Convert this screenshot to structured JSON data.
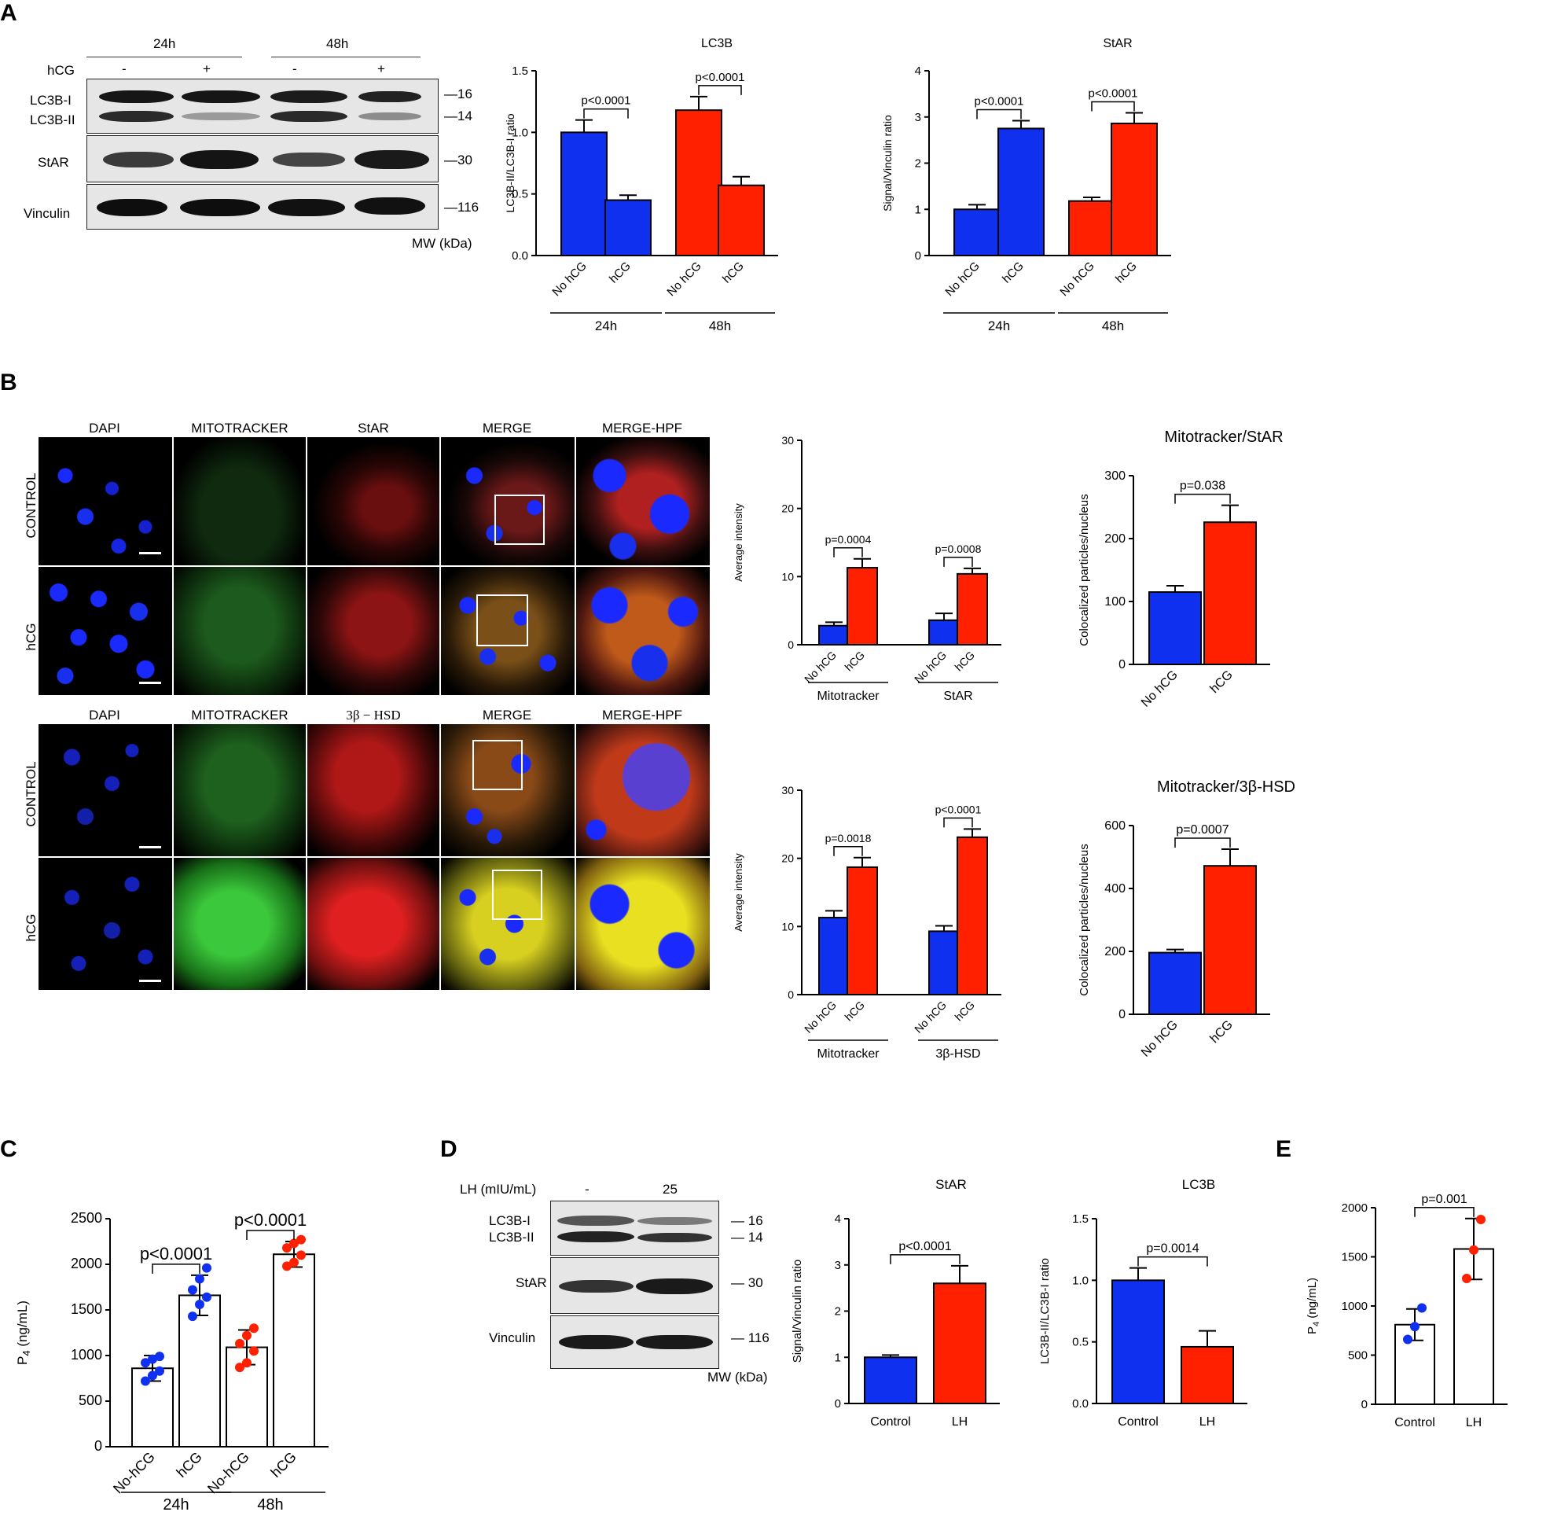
{
  "panels": {
    "A": "A",
    "B": "B",
    "C": "C",
    "D": "D",
    "E": "E"
  },
  "blotA": {
    "time_24": "24h",
    "time_48": "48h",
    "treat_label": "hCG",
    "signs": [
      "-",
      "+",
      "-",
      "+"
    ],
    "row_labels": [
      "LC3B-I",
      "LC3B-II",
      "StAR",
      "Vinculin"
    ],
    "mw": [
      "16",
      "14",
      "30",
      "116"
    ],
    "mw_unit": "MW (kDa)"
  },
  "blotD": {
    "treat_label": "LH (mIU/mL)",
    "signs": [
      "-",
      "25"
    ],
    "row_labels": [
      "LC3B-I",
      "LC3B-II",
      "StAR",
      "Vinculin"
    ],
    "mw": [
      "16",
      "14",
      "30",
      "116"
    ],
    "mw_unit": "MW (kDa)"
  },
  "micro": {
    "headers_top": [
      "DAPI",
      "MITOTRACKER",
      "StAR",
      "MERGE",
      "MERGE-HPF"
    ],
    "headers_bottom": [
      "DAPI",
      "MITOTRACKER",
      "3β − HSD",
      "MERGE",
      "MERGE-HPF"
    ],
    "row_labels": [
      "CONTROL",
      "hCG",
      "CONTROL",
      "hCG"
    ]
  },
  "colors": {
    "blue": "#1030f0",
    "red": "#ff2000"
  },
  "chart_data": [
    {
      "id": "A_LC3B",
      "type": "bar",
      "title": "LC3B",
      "ylabel": "LC3B-II/LC3B-I ratio",
      "ylim": [
        0,
        1.5
      ],
      "yticks": [
        "0.0",
        "0.5",
        "1.0",
        "1.5"
      ],
      "categories": [
        "No hCG",
        "hCG",
        "No hCG",
        "hCG"
      ],
      "values": [
        1.0,
        0.45,
        1.18,
        0.57
      ],
      "errors": [
        0.1,
        0.04,
        0.11,
        0.07
      ],
      "colors": [
        "blue",
        "blue",
        "red",
        "red"
      ],
      "groups": [
        "24h",
        "48h"
      ],
      "pvalues": [
        "p<0.0001",
        "p<0.0001"
      ]
    },
    {
      "id": "A_StAR",
      "type": "bar",
      "title": "StAR",
      "ylabel": "Signal/Vinculin ratio",
      "ylim": [
        0,
        4
      ],
      "yticks": [
        "0",
        "1",
        "2",
        "3",
        "4"
      ],
      "categories": [
        "No hCG",
        "hCG",
        "No hCG",
        "hCG"
      ],
      "values": [
        1.0,
        2.75,
        1.18,
        2.86
      ],
      "errors": [
        0.1,
        0.17,
        0.08,
        0.23
      ],
      "colors": [
        "blue",
        "blue",
        "red",
        "red"
      ],
      "groups": [
        "24h",
        "48h"
      ],
      "pvalues": [
        "p<0.0001",
        "p<0.0001"
      ]
    },
    {
      "id": "B_int1",
      "type": "bar",
      "title": "",
      "ylabel": "Average intensity",
      "ylim": [
        0,
        30
      ],
      "yticks": [
        "0",
        "10",
        "20",
        "30"
      ],
      "categories": [
        "No hCG",
        "hCG",
        "No hCG",
        "hCG"
      ],
      "values": [
        2.8,
        11.3,
        3.6,
        10.4
      ],
      "errors": [
        0.5,
        1.3,
        1.0,
        0.8
      ],
      "colors": [
        "blue",
        "red",
        "blue",
        "red"
      ],
      "groups": [
        "Mitotracker",
        "StAR"
      ],
      "pvalues": [
        "p=0.0004",
        "p=0.0008"
      ]
    },
    {
      "id": "B_coloc1",
      "type": "bar",
      "title": "Mitotracker/StAR",
      "ylabel": "Colocalized particles/nucleus",
      "ylim": [
        0,
        300
      ],
      "yticks": [
        "0",
        "100",
        "200",
        "300"
      ],
      "categories": [
        "No hCG",
        "hCG"
      ],
      "values": [
        115,
        226
      ],
      "errors": [
        10,
        27
      ],
      "colors": [
        "blue",
        "red"
      ],
      "pvalues": [
        "p=0.038"
      ]
    },
    {
      "id": "B_int2",
      "type": "bar",
      "title": "",
      "ylabel": "Average intensity",
      "ylim": [
        0,
        30
      ],
      "yticks": [
        "0",
        "10",
        "20",
        "30"
      ],
      "categories": [
        "No hCG",
        "hCG",
        "No hCG",
        "hCG"
      ],
      "values": [
        11.3,
        18.7,
        9.3,
        23.1
      ],
      "errors": [
        1.0,
        1.4,
        0.8,
        1.2
      ],
      "colors": [
        "blue",
        "red",
        "blue",
        "red"
      ],
      "groups": [
        "Mitotracker",
        "3β-HSD"
      ],
      "pvalues": [
        "p=0.0018",
        "p<0.0001"
      ]
    },
    {
      "id": "B_coloc2",
      "type": "bar",
      "title": "Mitotracker/3β-HSD",
      "ylabel": "Colocalized particles/nucleus",
      "ylim": [
        0,
        600
      ],
      "yticks": [
        "0",
        "200",
        "400",
        "600"
      ],
      "categories": [
        "No hCG",
        "hCG"
      ],
      "values": [
        196,
        472
      ],
      "errors": [
        10,
        53
      ],
      "colors": [
        "blue",
        "red"
      ],
      "pvalues": [
        "p=0.0007"
      ]
    },
    {
      "id": "C_P4",
      "type": "bar",
      "title": "",
      "ylabel": "P4 (ng/mL)",
      "ylim": [
        0,
        2500
      ],
      "yticks": [
        "0",
        "500",
        "1000",
        "1500",
        "2000",
        "2500"
      ],
      "categories": [
        "No-hCG",
        "hCG",
        "No-hCG",
        "hCG"
      ],
      "values": [
        860,
        1660,
        1090,
        2110
      ],
      "errors": [
        140,
        220,
        190,
        140
      ],
      "colors": [
        "white",
        "white",
        "white",
        "white"
      ],
      "points": [
        [
          720,
          780,
          830,
          920,
          960,
          990
        ],
        [
          1430,
          1560,
          1640,
          1720,
          1840,
          1960
        ],
        [
          870,
          920,
          1050,
          1130,
          1220,
          1300
        ],
        [
          1980,
          2020,
          2100,
          2180,
          2230,
          2270
        ]
      ],
      "point_colors": [
        "blue",
        "blue",
        "red",
        "red"
      ],
      "groups": [
        "24h",
        "48h"
      ],
      "pvalues": [
        "p<0.0001",
        "p<0.0001"
      ]
    },
    {
      "id": "D_StAR",
      "type": "bar",
      "title": "StAR",
      "ylabel": "Signal/Vinculin ratio",
      "ylim": [
        0,
        4
      ],
      "yticks": [
        "0",
        "1",
        "2",
        "3",
        "4"
      ],
      "categories": [
        "Control",
        "LH"
      ],
      "values": [
        1.0,
        2.6
      ],
      "errors": [
        0.05,
        0.38
      ],
      "colors": [
        "blue",
        "red"
      ],
      "pvalues": [
        "p<0.0001"
      ]
    },
    {
      "id": "D_LC3B",
      "type": "bar",
      "title": "LC3B",
      "ylabel": "LC3B-II/LC3B-I ratio",
      "ylim": [
        0,
        1.5
      ],
      "yticks": [
        "0.0",
        "0.5",
        "1.0",
        "1.5"
      ],
      "categories": [
        "Control",
        "LH"
      ],
      "values": [
        1.0,
        0.46
      ],
      "errors": [
        0.1,
        0.13
      ],
      "colors": [
        "blue",
        "red"
      ],
      "pvalues": [
        "p=0.0014"
      ]
    },
    {
      "id": "E_P4",
      "type": "bar",
      "title": "",
      "ylabel": "P4 (ng/mL)",
      "ylim": [
        0,
        2000
      ],
      "yticks": [
        "0",
        "500",
        "1000",
        "1500",
        "2000"
      ],
      "categories": [
        "Control",
        "LH"
      ],
      "values": [
        810,
        1580
      ],
      "errors": [
        160,
        310
      ],
      "colors": [
        "white",
        "white"
      ],
      "points": [
        [
          660,
          790,
          980
        ],
        [
          1280,
          1570,
          1880
        ]
      ],
      "point_colors": [
        "blue",
        "red"
      ],
      "pvalues": [
        "p=0.001"
      ]
    }
  ]
}
